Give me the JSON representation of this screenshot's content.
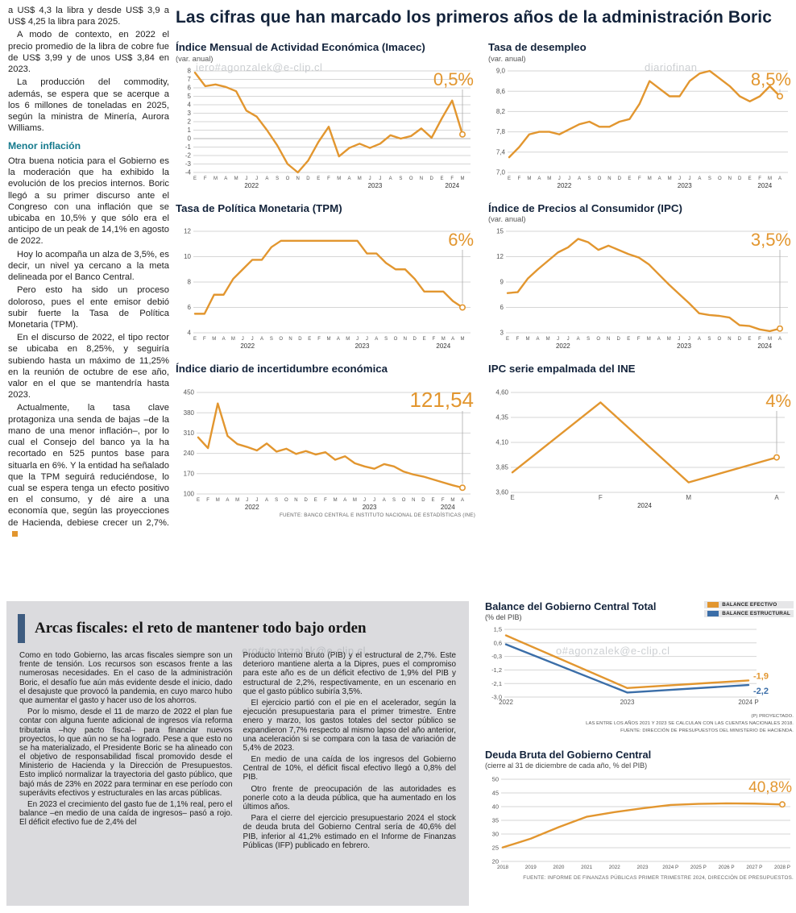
{
  "headline": "Las cifras que han marcado los primeros años de la administración Boric",
  "colors": {
    "line": "#E2962F",
    "structural": "#3B6EA8",
    "teal": "#157A8D",
    "headline": "#13233B",
    "graybox": "#DBDBDE",
    "accent_bar": "#3E5C80"
  },
  "watermarks": {
    "top_left": "iero#agonzalek@e-clip.cl",
    "top_right": "diariofinan",
    "mid_left": "ero#agonzalek@e-clip.cl",
    "mid_right": "o#agonzalek@e-clip.cl"
  },
  "article": {
    "intro_paragraphs": [
      "a US$ 4,3 la libra y desde US$ 3,9 a US$ 4,25 la libra para 2025.",
      "A modo de contexto, en 2022 el precio promedio de la libra de cobre fue de US$ 3,99 y de unos US$ 3,84 en 2023.",
      "La producción del commodity, además, se espera que se acerque a los 6 millones de toneladas en 2025, según la ministra de Minería, Aurora Williams."
    ],
    "subhead": "Menor inflación",
    "body_paragraphs": [
      "Otra buena noticia para el Gobierno es la moderación que ha exhibido la evolución de los precios internos. Boric llegó a su primer discurso ante el Congreso con una inflación que se ubicaba en 10,5% y que sólo era el anticipo de un peak de 14,1% en agosto de 2022.",
      "Hoy lo acompaña un alza de 3,5%, es decir, un nivel ya cercano a la meta delineada por el Banco Central.",
      "Pero esto ha sido un proceso doloroso, pues el ente emisor debió subir fuerte la Tasa de Política Monetaria (TPM).",
      "En el discurso de 2022, el tipo rector se ubicaba en 8,25%, y seguiría subiendo hasta un máximo de 11,25% en la reunión de octubre de ese año, valor en el que se mantendría hasta 2023.",
      "Actualmente, la tasa clave protagoniza una senda de bajas –de la mano de una menor inflación–, por lo cual el Consejo del banco ya la ha recortado en 525 puntos base para situarla en 6%. Y la entidad ha señalado que la TPM seguirá reduciéndose, lo cual se espera tenga un efecto positivo en el consumo, y dé aire a una economía que, según las proyecciones de Hacienda, debiese crecer un 2,7%."
    ]
  },
  "fiscal": {
    "headline": "Arcas fiscales: el reto de mantener todo bajo orden",
    "col1": [
      "Como en todo Gobierno, las arcas fiscales siempre son un frente de tensión. Los recursos son escasos frente a las numerosas necesidades. En el caso de la administración Boric, el desafío fue aún más evidente desde el inicio, dado el desajuste que provocó la pandemia, en cuyo marco hubo que aumentar el gasto y hacer uso de los ahorros.",
      "Por lo mismo, desde el 11 de marzo de 2022 el plan fue contar con alguna fuente adicional de ingresos vía reforma tributaria –hoy pacto fiscal– para financiar nuevos proyectos, lo que aún no se ha logrado. Pese a que esto no se ha materializado, el Presidente Boric se ha alineado con el objetivo de responsabilidad fiscal promovido desde el Ministerio de Hacienda y la Dirección de Presupuestos. Esto implicó normalizar la trayectoria del gasto público, que bajó más de 23% en 2022 para terminar en ese período con superávits efectivos y estructurales en las arcas públicas.",
      "En 2023 el crecimiento del gasto fue de 1,1% real, pero el balance –en medio de una caída de ingresos– pasó a rojo. El déficit efectivo fue de 2,4% del"
    ],
    "col2": [
      "Producto Interno Bruto (PIB) y el estructural de 2,7%. Este deterioro mantiene alerta a la Dipres, pues el compromiso para este año es de un déficit efectivo de 1,9% del PIB y estructural de 2,2%, respectivamente, en un escenario en que el gasto público subiría 3,5%.",
      "El ejercicio partió con el pie en el acelerador, según la ejecución presupuestaria para el primer trimestre. Entre enero y marzo, los gastos totales del sector público se expandieron 7,7% respecto al mismo lapso del año anterior, una aceleración si se compara con la tasa de variación de 5,4% de 2023.",
      "En medio de una caída de los ingresos del Gobierno Central de 10%, el déficit fiscal efectivo llegó a 0,8% del PIB.",
      "Otro frente de preocupación de las autoridades es ponerle coto a la deuda pública, que ha aumentado en los últimos años.",
      "Para el cierre del ejercicio presupuestario 2024 el stock de deuda bruta del Gobierno Central sería de 40,6% del PIB, inferior al 41,2% estimado en el Informe de Finanzas Públicas (IFP) publicado en febrero."
    ]
  },
  "chart_data": [
    {
      "id": "imacec",
      "type": "line",
      "title": "Índice Mensual de Actividad Económica (Imacec)",
      "subtitle": "(var. anual)",
      "highlight": "0,5%",
      "highlight_size": 22,
      "ymin": -4,
      "ymax": 8,
      "yticks": [
        [
          8,
          "8"
        ],
        [
          7,
          "7"
        ],
        [
          6,
          "6"
        ],
        [
          5,
          "5"
        ],
        [
          4,
          "4"
        ],
        [
          3,
          "3"
        ],
        [
          2,
          "2"
        ],
        [
          1,
          "1"
        ],
        [
          0,
          "0"
        ],
        [
          -1,
          "-1"
        ],
        [
          -2,
          "-2"
        ],
        [
          -3,
          "-3"
        ],
        [
          -4,
          "-4"
        ]
      ],
      "x_labels": [
        "E",
        "F",
        "M",
        "A",
        "M",
        "J",
        "J",
        "A",
        "S",
        "O",
        "N",
        "D",
        "E",
        "F",
        "M",
        "A",
        "M",
        "J",
        "J",
        "A",
        "S",
        "O",
        "N",
        "D",
        "E",
        "F",
        "M"
      ],
      "years": [
        {
          "label": "2022",
          "from": 0,
          "to": 11
        },
        {
          "label": "2023",
          "from": 12,
          "to": 23
        },
        {
          "label": "2024",
          "from": 24,
          "to": 26
        }
      ],
      "values": [
        7.8,
        6.2,
        6.4,
        6.1,
        5.6,
        3.3,
        2.6,
        1.0,
        -0.8,
        -3.0,
        -4.0,
        -2.6,
        -0.4,
        1.4,
        -2.1,
        -1.1,
        -0.6,
        -1.1,
        -0.6,
        0.4,
        0.0,
        0.3,
        1.2,
        0.1,
        2.4,
        4.5,
        0.5
      ],
      "margins": {
        "l": 24,
        "r": 16,
        "t": 8,
        "b": 22
      }
    },
    {
      "id": "desempleo",
      "type": "line",
      "title": "Tasa de desempleo",
      "subtitle": "(var. anual)",
      "highlight": "8,5%",
      "highlight_size": 22,
      "ymin": 7.0,
      "ymax": 9.0,
      "yticks": [
        [
          9.0,
          "9,0"
        ],
        [
          8.6,
          "8,6"
        ],
        [
          8.2,
          "8,2"
        ],
        [
          7.8,
          "7,8"
        ],
        [
          7.4,
          "7,4"
        ],
        [
          7.0,
          "7,0"
        ]
      ],
      "x_labels": [
        "E",
        "F",
        "M",
        "A",
        "M",
        "J",
        "J",
        "A",
        "S",
        "O",
        "N",
        "D",
        "E",
        "F",
        "M",
        "A",
        "M",
        "J",
        "J",
        "A",
        "S",
        "O",
        "N",
        "D",
        "E",
        "F",
        "M",
        "A"
      ],
      "years": [
        {
          "label": "2022",
          "from": 0,
          "to": 11
        },
        {
          "label": "2023",
          "from": 12,
          "to": 23
        },
        {
          "label": "2024",
          "from": 24,
          "to": 27
        }
      ],
      "values": [
        7.3,
        7.5,
        7.75,
        7.8,
        7.8,
        7.75,
        7.85,
        7.95,
        8.0,
        7.9,
        7.9,
        8.0,
        8.05,
        8.35,
        8.8,
        8.65,
        8.5,
        8.5,
        8.8,
        8.95,
        9.0,
        8.85,
        8.7,
        8.5,
        8.4,
        8.5,
        8.7,
        8.5
      ],
      "margins": {
        "l": 26,
        "r": 16,
        "t": 8,
        "b": 22
      }
    },
    {
      "id": "tpm",
      "type": "line",
      "title": "Tasa de Política Monetaria (TPM)",
      "subtitle": "",
      "highlight": "6%",
      "highlight_size": 22,
      "ymin": 4,
      "ymax": 12,
      "yticks": [
        [
          12,
          "12"
        ],
        [
          10,
          "10"
        ],
        [
          8,
          "8"
        ],
        [
          6,
          "6"
        ],
        [
          4,
          "4"
        ]
      ],
      "x_labels": [
        "E",
        "F",
        "M",
        "A",
        "M",
        "J",
        "J",
        "A",
        "S",
        "O",
        "N",
        "D",
        "E",
        "F",
        "M",
        "A",
        "M",
        "J",
        "J",
        "A",
        "S",
        "O",
        "N",
        "D",
        "E",
        "F",
        "M",
        "A",
        "M"
      ],
      "years": [
        {
          "label": "2022",
          "from": 0,
          "to": 11
        },
        {
          "label": "2023",
          "from": 12,
          "to": 23
        },
        {
          "label": "2024",
          "from": 24,
          "to": 28
        }
      ],
      "values": [
        5.5,
        5.5,
        7.0,
        7.0,
        8.25,
        9.0,
        9.75,
        9.75,
        10.75,
        11.25,
        11.25,
        11.25,
        11.25,
        11.25,
        11.25,
        11.25,
        11.25,
        11.25,
        10.25,
        10.25,
        9.5,
        9.0,
        9.0,
        8.25,
        7.25,
        7.25,
        7.25,
        6.5,
        6.0
      ],
      "margins": {
        "l": 24,
        "r": 16,
        "t": 8,
        "b": 22
      }
    },
    {
      "id": "ipc",
      "type": "line",
      "title": "Índice de Precios al Consumidor (IPC)",
      "subtitle": "(var. anual)",
      "highlight": "3,5%",
      "highlight_size": 22,
      "ymin": 3,
      "ymax": 15,
      "yticks": [
        [
          15,
          "15"
        ],
        [
          12,
          "12"
        ],
        [
          9,
          "9"
        ],
        [
          6,
          "6"
        ],
        [
          3,
          "3"
        ]
      ],
      "x_labels": [
        "E",
        "F",
        "M",
        "A",
        "M",
        "J",
        "J",
        "A",
        "S",
        "O",
        "N",
        "D",
        "E",
        "F",
        "M",
        "A",
        "M",
        "J",
        "J",
        "A",
        "S",
        "O",
        "N",
        "D",
        "E",
        "F",
        "M",
        "A"
      ],
      "years": [
        {
          "label": "2022",
          "from": 0,
          "to": 11
        },
        {
          "label": "2023",
          "from": 12,
          "to": 23
        },
        {
          "label": "2024",
          "from": 24,
          "to": 27
        }
      ],
      "values": [
        7.7,
        7.8,
        9.4,
        10.5,
        11.5,
        12.5,
        13.1,
        14.1,
        13.7,
        12.8,
        13.3,
        12.8,
        12.3,
        11.9,
        11.1,
        9.9,
        8.7,
        7.6,
        6.5,
        5.3,
        5.1,
        5.0,
        4.8,
        3.9,
        3.8,
        3.4,
        3.2,
        3.5
      ],
      "margins": {
        "l": 24,
        "r": 16,
        "t": 8,
        "b": 22
      }
    },
    {
      "id": "incertidumbre",
      "type": "line",
      "title": "Índice diario de incertidumbre económica",
      "subtitle": "",
      "highlight": "121,54",
      "highlight_size": 26,
      "ymin": 100,
      "ymax": 450,
      "yticks": [
        [
          450,
          "450"
        ],
        [
          380,
          "380"
        ],
        [
          310,
          "310"
        ],
        [
          240,
          "240"
        ],
        [
          170,
          "170"
        ],
        [
          100,
          "100"
        ]
      ],
      "x_labels": [
        "E",
        "F",
        "M",
        "A",
        "M",
        "J",
        "J",
        "A",
        "S",
        "O",
        "N",
        "D",
        "E",
        "F",
        "M",
        "A",
        "M",
        "J",
        "J",
        "A",
        "S",
        "O",
        "N",
        "D",
        "E",
        "F",
        "M",
        "A"
      ],
      "years": [
        {
          "label": "2022",
          "from": 0,
          "to": 11
        },
        {
          "label": "2023",
          "from": 12,
          "to": 23
        },
        {
          "label": "2024",
          "from": 24,
          "to": 27
        }
      ],
      "values": [
        295,
        258,
        412,
        300,
        272,
        262,
        250,
        274,
        246,
        256,
        238,
        248,
        236,
        244,
        218,
        230,
        206,
        195,
        187,
        203,
        195,
        177,
        167,
        160,
        150,
        140,
        130,
        121.54
      ],
      "source": "FUENTE: BANCO CENTRAL E INSTITUTO NACIONAL DE ESTADÍSTICAS (INE)",
      "margins": {
        "l": 28,
        "r": 16,
        "t": 8,
        "b": 22
      }
    },
    {
      "id": "ipc_ine",
      "type": "line",
      "title": "IPC serie empalmada del INE",
      "subtitle": "",
      "highlight": "4%",
      "highlight_size": 22,
      "ymin": 3.6,
      "ymax": 4.6,
      "yticks": [
        [
          4.6,
          "4,60"
        ],
        [
          4.35,
          "4,35"
        ],
        [
          4.1,
          "4,10"
        ],
        [
          3.85,
          "3,85"
        ],
        [
          3.6,
          "3,60"
        ]
      ],
      "x_labels": [
        "E",
        "F",
        "M",
        "A"
      ],
      "xfont": 8,
      "years": [
        {
          "label": "2024",
          "from": 0,
          "to": 3
        }
      ],
      "values": [
        3.8,
        4.5,
        3.7,
        3.95
      ],
      "margins": {
        "l": 30,
        "r": 20,
        "t": 8,
        "b": 24
      }
    },
    {
      "id": "balance",
      "type": "line",
      "title": "Balance del Gobierno Central Total",
      "subtitle": "(% del PIB)",
      "legend": [
        {
          "label": "BALANCE EFECTIVO",
          "color_key": "line"
        },
        {
          "label": "BALANCE ESTRUCTURAL",
          "color_key": "structural"
        }
      ],
      "ymin": -3.0,
      "ymax": 1.5,
      "yfont": 7.5,
      "yticks": [
        [
          1.5,
          "1,5"
        ],
        [
          0.6,
          "0,6"
        ],
        [
          -0.3,
          "-0,3"
        ],
        [
          -1.2,
          "-1,2"
        ],
        [
          -2.1,
          "-2,1"
        ],
        [
          -3.0,
          "-3,0"
        ]
      ],
      "x_labels": [
        "2022",
        "2023",
        "2024 P"
      ],
      "xfont": 8,
      "series": [
        {
          "name": "BALANCE EFECTIVO",
          "color_key": "line",
          "values": [
            1.1,
            -2.4,
            -1.9
          ],
          "end_label": {
            "text": "-1,9",
            "dy": -2
          },
          "end_circle": false
        },
        {
          "name": "BALANCE ESTRUCTURAL",
          "color_key": "structural",
          "values": [
            0.5,
            -2.7,
            -2.2
          ],
          "end_label": {
            "text": "-2,2",
            "dy": 11
          },
          "end_circle": false
        }
      ],
      "footnotes": [
        "(P) PROYECTADO.",
        "LAS ENTRE LOS AÑOS 2021 Y 2023 SE CALCULAN CON LAS CUENTAS NACIONALES 2018.",
        "FUENTE: DIRECCIÓN DE PRESUPUESTOS DEL MINISTERIO DE HACIENDA."
      ],
      "margins": {
        "l": 26,
        "r": 56,
        "t": 8,
        "b": 18
      }
    },
    {
      "id": "deuda",
      "type": "line",
      "title": "Deuda Bruta del Gobierno Central",
      "subtitle": "(cierre al 31 de diciembre de cada año, % del PIB)",
      "highlight": "40,8%",
      "highlight_size": 19,
      "connector": false,
      "ymin": 20,
      "ymax": 50,
      "yfont": 7.5,
      "yticks": [
        [
          50,
          "50"
        ],
        [
          45,
          "45"
        ],
        [
          40,
          "40"
        ],
        [
          35,
          "35"
        ],
        [
          30,
          "30"
        ],
        [
          25,
          "25"
        ],
        [
          20,
          "20"
        ]
      ],
      "x_labels": [
        "2018",
        "2019",
        "2020",
        "2021",
        "2022",
        "2023",
        "2024 P",
        "2025 P",
        "2026 P",
        "2027 P",
        "2028 P"
      ],
      "xfont": 6.3,
      "values": [
        25.1,
        28.3,
        32.5,
        36.3,
        38.0,
        39.4,
        40.6,
        41.0,
        41.2,
        41.1,
        40.8
      ],
      "source": "FUENTE: INFORME DE FINANZAS PÚBLICAS PRIMER TRIMESTRE 2024, DIRECCIÓN DE PRESUPUESTOS.",
      "margins": {
        "l": 22,
        "r": 14,
        "t": 10,
        "b": 16
      }
    }
  ]
}
